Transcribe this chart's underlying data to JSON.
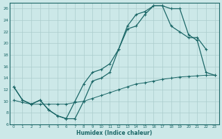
{
  "xlabel": "Humidex (Indice chaleur)",
  "bg_color": "#cce8e8",
  "grid_color": "#aacccc",
  "line_color": "#1a6666",
  "xlim": [
    -0.5,
    23.5
  ],
  "ylim": [
    6,
    27
  ],
  "xticks": [
    0,
    1,
    2,
    3,
    4,
    5,
    6,
    7,
    8,
    9,
    10,
    11,
    12,
    13,
    14,
    15,
    16,
    17,
    18,
    19,
    20,
    21,
    22,
    23
  ],
  "yticks": [
    6,
    8,
    10,
    12,
    14,
    16,
    18,
    20,
    22,
    24,
    26
  ],
  "line1_x": [
    0,
    1,
    2,
    3,
    4,
    5,
    6,
    7,
    8,
    9,
    10,
    11,
    12,
    13,
    14,
    15,
    16,
    17,
    18,
    19,
    20,
    21,
    22,
    23
  ],
  "line1_y": [
    12.5,
    10.2,
    9.5,
    10.2,
    8.5,
    7.5,
    7.0,
    7.0,
    10.0,
    13.5,
    14.0,
    15.0,
    19.0,
    22.5,
    23.0,
    25.0,
    26.5,
    26.5,
    26.0,
    26.0,
    21.5,
    20.5,
    15.0,
    14.5
  ],
  "line2_x": [
    0,
    1,
    2,
    3,
    4,
    5,
    6,
    7,
    8,
    9,
    10,
    11,
    12,
    13,
    14,
    15,
    16,
    17,
    18,
    19,
    20,
    21,
    22
  ],
  "line2_y": [
    12.5,
    10.2,
    9.5,
    10.2,
    8.5,
    7.5,
    7.0,
    10.0,
    13.0,
    15.0,
    15.5,
    16.5,
    19.0,
    23.0,
    25.0,
    25.5,
    26.5,
    26.5,
    23.0,
    22.0,
    21.0,
    21.0,
    19.0
  ],
  "line3_x": [
    0,
    1,
    2,
    3,
    4,
    5,
    6,
    7,
    8,
    9,
    10,
    11,
    12,
    13,
    14,
    15,
    16,
    17,
    18,
    19,
    20,
    21,
    22,
    23
  ],
  "line3_y": [
    10.2,
    9.8,
    9.5,
    9.5,
    9.5,
    9.5,
    9.5,
    9.8,
    10.0,
    10.5,
    11.0,
    11.5,
    12.0,
    12.5,
    13.0,
    13.2,
    13.5,
    13.8,
    14.0,
    14.2,
    14.3,
    14.4,
    14.5,
    14.5
  ]
}
